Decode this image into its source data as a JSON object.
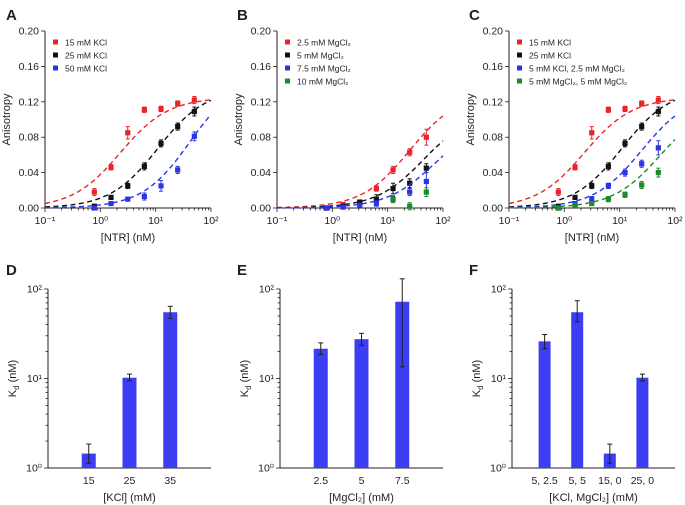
{
  "chart_data": [
    {
      "panel": "A",
      "type": "scatter",
      "xscale": "log",
      "xlim": [
        0.1,
        100
      ],
      "ylim": [
        0,
        0.2
      ],
      "xlabel": "[NTR] (nM)",
      "ylabel": "Anisotropy",
      "xtick_labels": [
        "10⁻¹",
        "10⁰",
        "10¹",
        "10²"
      ],
      "ytick_labels": [
        "0.00",
        "0.04",
        "0.08",
        "0.12",
        "0.16",
        "0.20"
      ],
      "yticks": [
        0,
        0.04,
        0.08,
        0.12,
        0.16,
        0.2
      ],
      "legend_position": "top-left",
      "series": [
        {
          "name": "15 mM KCl",
          "color": "#e8262a",
          "x": [
            0.78,
            1.56,
            3.13,
            6.25,
            12.5,
            25,
            50
          ],
          "y": [
            0.018,
            0.046,
            0.085,
            0.111,
            0.112,
            0.118,
            0.122
          ],
          "err": [
            0.004,
            0.003,
            0.007,
            0.003,
            0.003,
            0.003,
            0.004
          ],
          "fit": {
            "kd": 2.3,
            "max": 0.125
          }
        },
        {
          "name": "25 mM KCl",
          "color": "#111111",
          "x": [
            0.78,
            1.56,
            3.13,
            6.25,
            12.5,
            25,
            50
          ],
          "y": [
            0.002,
            0.012,
            0.025,
            0.047,
            0.073,
            0.092,
            0.109
          ],
          "err": [
            0.002,
            0.002,
            0.003,
            0.004,
            0.004,
            0.004,
            0.005
          ],
          "fit": {
            "kd": 11,
            "max": 0.135
          }
        },
        {
          "name": "50 mM KCl",
          "color": "#2b35e6",
          "x": [
            0.78,
            1.56,
            3.13,
            6.25,
            12.5,
            25,
            50
          ],
          "y": [
            0.0,
            0.005,
            0.01,
            0.013,
            0.025,
            0.043,
            0.081
          ],
          "err": [
            0.002,
            0.002,
            0.002,
            0.004,
            0.006,
            0.004,
            0.005
          ],
          "fit": {
            "kd": 42,
            "max": 0.15
          }
        }
      ]
    },
    {
      "panel": "B",
      "type": "scatter",
      "xscale": "log",
      "xlim": [
        0.1,
        100
      ],
      "ylim": [
        0,
        0.2
      ],
      "xlabel": "[NTR] (nM)",
      "ylabel": "Anisotropy",
      "xtick_labels": [
        "10⁻¹",
        "10⁰",
        "10¹",
        "10²"
      ],
      "ytick_labels": [
        "0.00",
        "0.04",
        "0.08",
        "0.12",
        "0.16",
        "0.20"
      ],
      "yticks": [
        0,
        0.04,
        0.08,
        0.12,
        0.16,
        0.2
      ],
      "legend_position": "top-left",
      "series": [
        {
          "name": "2.5 mM MgCl₂",
          "color": "#e8262a",
          "x": [
            0.78,
            1.56,
            3.13,
            6.25,
            12.5,
            25,
            50
          ],
          "y": [
            0.0,
            0.004,
            0.007,
            0.022,
            0.043,
            0.063,
            0.08
          ],
          "err": [
            0.002,
            0.002,
            0.002,
            0.003,
            0.004,
            0.004,
            0.009
          ],
          "fit": {
            "kd": 25,
            "max": 0.13
          }
        },
        {
          "name": "5 mM MgCl₂",
          "color": "#111111",
          "x": [
            0.78,
            1.56,
            3.13,
            6.25,
            12.5,
            25,
            50
          ],
          "y": [
            0.0,
            0.002,
            0.006,
            0.01,
            0.022,
            0.028,
            0.045
          ],
          "err": [
            0.002,
            0.002,
            0.002,
            0.005,
            0.006,
            0.005,
            0.005
          ],
          "fit": {
            "kd": 45,
            "max": 0.11
          }
        },
        {
          "name": "7.5 mM MgCl₂",
          "color": "#2b35e6",
          "x": [
            0.78,
            1.56,
            3.13,
            6.25,
            12.5,
            25,
            50
          ],
          "y": [
            0.0,
            0.001,
            0.003,
            0.005,
            0.01,
            0.018,
            0.03
          ],
          "err": [
            0.002,
            0.002,
            0.002,
            0.003,
            0.003,
            0.004,
            0.01
          ],
          "fit": {
            "kd": 70,
            "max": 0.1
          }
        },
        {
          "name": "10 mM MgCl₂",
          "color": "#1f8a2c",
          "x": [
            12.5,
            25,
            50
          ],
          "y": [
            0.01,
            0.002,
            0.018
          ],
          "err": [
            0.004,
            0.004,
            0.005
          ],
          "fit": null
        }
      ]
    },
    {
      "panel": "C",
      "type": "scatter",
      "xscale": "log",
      "xlim": [
        0.1,
        100
      ],
      "ylim": [
        0,
        0.2
      ],
      "xlabel": "[NTR] (nM)",
      "ylabel": "Anisotropy",
      "xtick_labels": [
        "10⁻¹",
        "10⁰",
        "10¹",
        "10²"
      ],
      "ytick_labels": [
        "0.00",
        "0.04",
        "0.08",
        "0.12",
        "0.16",
        "0.20"
      ],
      "yticks": [
        0,
        0.04,
        0.08,
        0.12,
        0.16,
        0.2
      ],
      "legend_position": "top-left",
      "series": [
        {
          "name": "15 mM KCl",
          "color": "#e8262a",
          "x": [
            0.78,
            1.56,
            3.13,
            6.25,
            12.5,
            25,
            50
          ],
          "y": [
            0.018,
            0.046,
            0.085,
            0.111,
            0.112,
            0.118,
            0.122
          ],
          "err": [
            0.004,
            0.003,
            0.007,
            0.003,
            0.003,
            0.003,
            0.004
          ],
          "fit": {
            "kd": 2.3,
            "max": 0.125
          }
        },
        {
          "name": "25 mM KCl",
          "color": "#111111",
          "x": [
            0.78,
            1.56,
            3.13,
            6.25,
            12.5,
            25,
            50
          ],
          "y": [
            0.002,
            0.012,
            0.025,
            0.047,
            0.073,
            0.092,
            0.109
          ],
          "err": [
            0.002,
            0.002,
            0.003,
            0.004,
            0.004,
            0.004,
            0.005
          ],
          "fit": {
            "kd": 11,
            "max": 0.135
          }
        },
        {
          "name": "5 mM KCl, 2.5 mM MgCl₂",
          "color": "#2b35e6",
          "x": [
            0.78,
            1.56,
            3.13,
            6.25,
            12.5,
            25,
            50
          ],
          "y": [
            0.0,
            0.005,
            0.01,
            0.025,
            0.04,
            0.05,
            0.068
          ],
          "err": [
            0.002,
            0.002,
            0.003,
            0.003,
            0.004,
            0.004,
            0.008
          ],
          "fit": {
            "kd": 25,
            "max": 0.13
          }
        },
        {
          "name": "5 mM MgCl₂, 5 mM MgCl₂",
          "color": "#1f8a2c",
          "x": [
            0.78,
            1.56,
            3.13,
            6.25,
            12.5,
            25,
            50
          ],
          "y": [
            0.0,
            0.003,
            0.005,
            0.01,
            0.015,
            0.026,
            0.04
          ],
          "err": [
            0.002,
            0.002,
            0.002,
            0.003,
            0.003,
            0.004,
            0.005
          ],
          "fit": {
            "kd": 55,
            "max": 0.12
          }
        }
      ]
    },
    {
      "panel": "D",
      "type": "bar",
      "yscale": "log",
      "ylim": [
        1,
        100
      ],
      "xlabel": "[KCl] (mM)",
      "ylabel": "K_d (nM)",
      "ytick_labels": [
        "10⁰",
        "10¹",
        "10²"
      ],
      "categories": [
        "15",
        "25",
        "35"
      ],
      "values": [
        1.45,
        10.2,
        55
      ],
      "err_low": [
        1.13,
        9.4,
        47
      ],
      "err_high": [
        1.85,
        11.2,
        64
      ]
    },
    {
      "panel": "E",
      "type": "bar",
      "yscale": "log",
      "ylim": [
        1,
        100
      ],
      "xlabel": "[MgCl₂] (mM)",
      "ylabel": "K_d (nM)",
      "ytick_labels": [
        "10⁰",
        "10¹",
        "10²"
      ],
      "categories": [
        "2.5",
        "5",
        "7.5"
      ],
      "values": [
        21.5,
        27.5,
        72
      ],
      "err_low": [
        18.5,
        23.5,
        13.5
      ],
      "err_high": [
        25,
        32,
        130
      ]
    },
    {
      "panel": "F",
      "type": "bar",
      "yscale": "log",
      "ylim": [
        1,
        100
      ],
      "xlabel": "[KCl, MgCl₂] (mM)",
      "ylabel": "K_d (nM)",
      "ytick_labels": [
        "10⁰",
        "10¹",
        "10²"
      ],
      "categories": [
        "5, 2.5",
        "5, 5",
        "15, 0",
        "25, 0"
      ],
      "values": [
        26,
        55,
        1.45,
        10.2
      ],
      "err_low": [
        21.5,
        43,
        1.13,
        9.4
      ],
      "err_high": [
        31,
        74,
        1.85,
        11.2
      ]
    }
  ]
}
